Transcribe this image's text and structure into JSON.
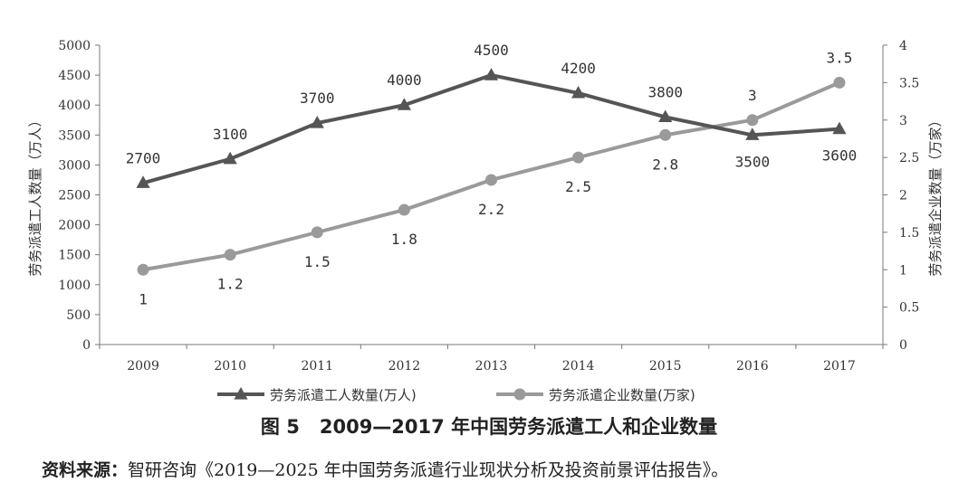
{
  "chart_data": {
    "type": "line",
    "categories": [
      "2009",
      "2010",
      "2011",
      "2012",
      "2013",
      "2014",
      "2015",
      "2016",
      "2017"
    ],
    "series": [
      {
        "name": "劳务派遣工人数量(万人)",
        "axis": "left",
        "marker": "triangle",
        "color": "#555555",
        "values": [
          2700,
          3100,
          3700,
          4000,
          4500,
          4200,
          3800,
          3500,
          3600
        ],
        "labels": [
          "2700",
          "3100",
          "3700",
          "4000",
          "4500",
          "4200",
          "3800",
          "3500",
          "3600"
        ]
      },
      {
        "name": "劳务派遣企业数量(万家)",
        "axis": "right",
        "marker": "circle",
        "color": "#9a9a9a",
        "values": [
          1,
          1.2,
          1.5,
          1.8,
          2.2,
          2.5,
          2.8,
          3,
          3.5
        ],
        "labels": [
          "1",
          "1.2",
          "1.5",
          "1.8",
          "2.2",
          "2.5",
          "2.8",
          "3",
          "3.5"
        ]
      }
    ],
    "left_axis": {
      "label": "劳务派遣工人数量（万人）",
      "ylim": [
        0,
        5000
      ],
      "ticks": [
        "0",
        "500",
        "1000",
        "1500",
        "2000",
        "2500",
        "3000",
        "3500",
        "4000",
        "4500",
        "5000"
      ]
    },
    "right_axis": {
      "label": "劳务派遣企业数量（万家）",
      "ylim": [
        0,
        4
      ],
      "ticks": [
        "0",
        "0.5",
        "1",
        "1.5",
        "2",
        "2.5",
        "3",
        "3.5",
        "4"
      ]
    },
    "grid": false,
    "legend_position": "bottom"
  },
  "caption": {
    "figure_number": "图 5",
    "title": "2009—2017 年中国劳务派遣工人和企业数量"
  },
  "source": {
    "label": "资料来源：",
    "text": "智研咨询《2019—2025 年中国劳务派遣行业现状分析及投资前景评估报告》。"
  }
}
